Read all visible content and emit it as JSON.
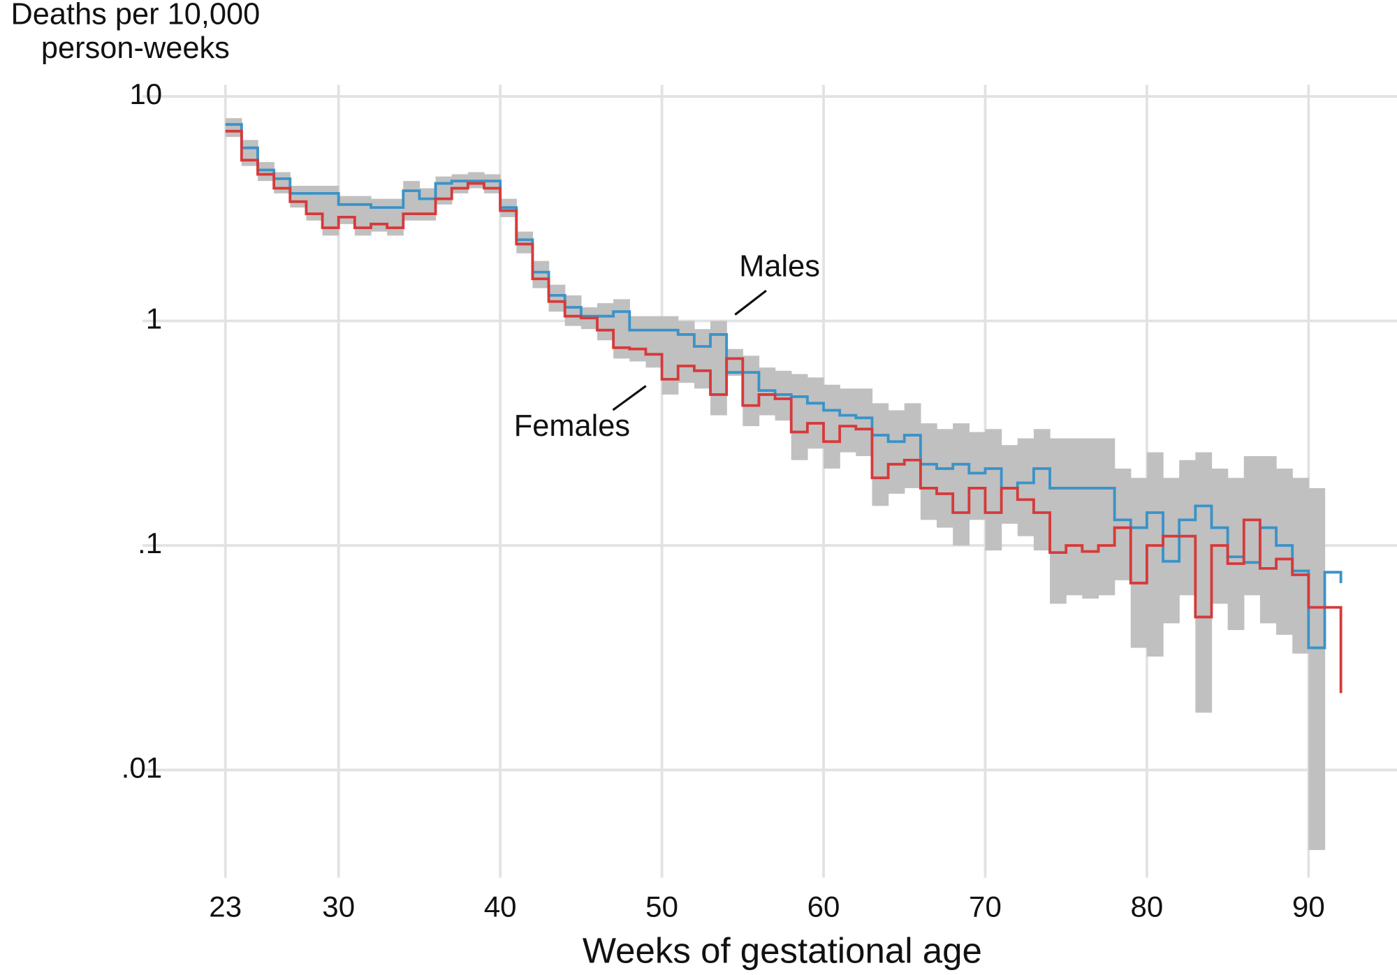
{
  "chart_data": {
    "type": "step",
    "ylabel": [
      "Deaths per 10,000",
      "person-weeks"
    ],
    "xlabel": "Weeks of gestational age",
    "annotations": [
      "Males",
      "Females"
    ],
    "log_y": true,
    "grid": true,
    "xlim": [
      23,
      92
    ],
    "ylim": [
      0.0035,
      10
    ],
    "xticks": [
      23,
      30,
      40,
      50,
      60,
      70,
      80,
      90
    ],
    "yticks": [
      10,
      1,
      {
        "value": 0.1,
        "label": ".1"
      },
      {
        "value": 0.01,
        "label": ".01"
      }
    ],
    "band_color": "#c0c0c0",
    "x": [
      23,
      24,
      25,
      26,
      27,
      28,
      29,
      30,
      31,
      32,
      33,
      34,
      35,
      36,
      37,
      38,
      39,
      40,
      41,
      42,
      43,
      44,
      45,
      46,
      47,
      48,
      49,
      50,
      51,
      52,
      53,
      54,
      55,
      56,
      57,
      58,
      59,
      60,
      61,
      62,
      63,
      64,
      65,
      66,
      67,
      68,
      69,
      70,
      71,
      72,
      73,
      74,
      75,
      76,
      77,
      78,
      79,
      80,
      81,
      82,
      83,
      84,
      85,
      86,
      87,
      88,
      89,
      90,
      91,
      92
    ],
    "band_lower": [
      6.6,
      4.9,
      4.2,
      3.7,
      3.2,
      2.8,
      2.4,
      2.7,
      2.4,
      2.5,
      2.4,
      2.8,
      2.8,
      3.3,
      3.7,
      3.9,
      3.7,
      2.9,
      2.0,
      1.4,
      1.1,
      0.95,
      0.92,
      0.82,
      0.68,
      0.66,
      0.62,
      0.47,
      0.53,
      0.5,
      0.38,
      0.57,
      0.34,
      0.38,
      0.36,
      0.24,
      0.27,
      0.22,
      0.26,
      0.25,
      0.15,
      0.17,
      0.18,
      0.13,
      0.12,
      0.1,
      0.13,
      0.095,
      0.125,
      0.11,
      0.095,
      0.055,
      0.06,
      0.058,
      0.06,
      0.07,
      0.035,
      0.032,
      0.045,
      0.06,
      0.018,
      0.055,
      0.042,
      0.06,
      0.045,
      0.04,
      0.033,
      0.0044,
      null,
      null
    ],
    "band_upper": [
      8.0,
      6.4,
      5.1,
      4.6,
      4.0,
      4.0,
      4.0,
      3.6,
      3.6,
      3.5,
      3.5,
      4.2,
      3.9,
      4.4,
      4.5,
      4.6,
      4.5,
      3.5,
      2.5,
      1.85,
      1.45,
      1.3,
      1.15,
      1.2,
      1.25,
      1.05,
      1.05,
      1.05,
      1.0,
      0.92,
      1.0,
      0.75,
      0.7,
      0.62,
      0.6,
      0.58,
      0.56,
      0.52,
      0.5,
      0.5,
      0.43,
      0.4,
      0.43,
      0.35,
      0.33,
      0.35,
      0.32,
      0.33,
      0.28,
      0.3,
      0.33,
      0.3,
      0.3,
      0.3,
      0.3,
      0.22,
      0.2,
      0.26,
      0.2,
      0.24,
      0.26,
      0.22,
      0.2,
      0.25,
      0.25,
      0.22,
      0.2,
      0.18,
      null,
      null
    ],
    "series": [
      {
        "name": "Males",
        "color": "#3a93c8",
        "values": [
          7.5,
          5.9,
          4.7,
          4.3,
          3.7,
          3.7,
          3.7,
          3.3,
          3.3,
          3.2,
          3.2,
          3.8,
          3.5,
          4.1,
          4.2,
          4.2,
          4.2,
          3.2,
          2.3,
          1.65,
          1.3,
          1.15,
          1.05,
          1.05,
          1.1,
          0.91,
          0.91,
          0.91,
          0.87,
          0.77,
          0.87,
          0.59,
          0.59,
          0.49,
          0.47,
          0.46,
          0.43,
          0.4,
          0.38,
          0.37,
          0.31,
          0.29,
          0.31,
          0.23,
          0.22,
          0.23,
          0.21,
          0.22,
          0.18,
          0.19,
          0.22,
          0.18,
          0.18,
          0.18,
          0.18,
          0.13,
          0.12,
          0.14,
          0.085,
          0.13,
          0.15,
          0.12,
          0.089,
          0.084,
          0.12,
          0.1,
          0.077,
          0.035,
          0.076,
          0.068
        ]
      },
      {
        "name": "Females",
        "color": "#d63a3a",
        "values": [
          7.0,
          5.2,
          4.5,
          3.9,
          3.4,
          3.0,
          2.6,
          2.9,
          2.6,
          2.7,
          2.6,
          3.0,
          3.0,
          3.5,
          3.9,
          4.1,
          3.9,
          3.1,
          2.2,
          1.54,
          1.22,
          1.05,
          1.03,
          0.91,
          0.76,
          0.75,
          0.71,
          0.55,
          0.63,
          0.6,
          0.47,
          0.68,
          0.42,
          0.47,
          0.45,
          0.32,
          0.35,
          0.29,
          0.34,
          0.33,
          0.2,
          0.23,
          0.24,
          0.18,
          0.17,
          0.14,
          0.18,
          0.14,
          0.18,
          0.16,
          0.14,
          0.093,
          0.1,
          0.094,
          0.1,
          0.12,
          0.068,
          0.1,
          0.11,
          0.11,
          0.048,
          0.1,
          0.083,
          0.13,
          0.079,
          0.087,
          0.074,
          0.053,
          0.053,
          0.022
        ]
      }
    ]
  }
}
